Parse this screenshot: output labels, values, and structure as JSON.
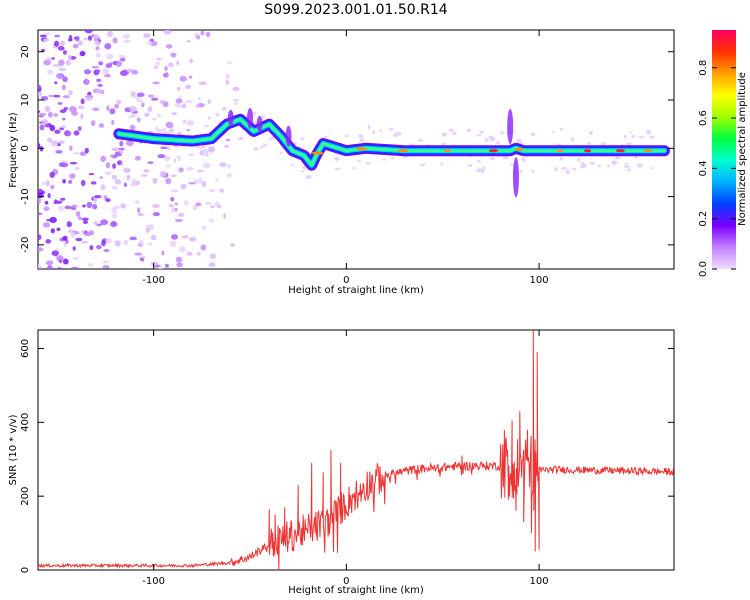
{
  "figure": {
    "title": "S099.2023.001.01.50.R14"
  },
  "chart_data": [
    {
      "type": "heatmap",
      "xlabel": "Height of straight line (km)",
      "ylabel": "Frequency (Hz)",
      "xlim": [
        -160,
        170
      ],
      "ylim": [
        -25,
        24.5
      ],
      "x_ticks": [
        -100,
        0,
        100
      ],
      "y_ticks": [
        -20,
        -10,
        0,
        10,
        20
      ],
      "x_tick_labels": [
        "-100",
        "0",
        "100"
      ],
      "y_tick_labels": [
        "-20",
        "-10",
        "0",
        "10",
        "20"
      ],
      "colorbar": {
        "label": "Normalized spectral amplitude",
        "range": [
          0,
          0.95
        ],
        "ticks": [
          0,
          0.2,
          0.4,
          0.6,
          0.8
        ],
        "tick_labels": [
          "0.0",
          "0.2",
          "0.4",
          "0.6",
          "0.8"
        ],
        "colors": [
          "#f2dcff",
          "#c080ff",
          "#7a00ff",
          "#0040ff",
          "#00b0ff",
          "#00ffd0",
          "#00ff40",
          "#a0ff00",
          "#ffff00",
          "#ffa000",
          "#ff3000",
          "#ff0060"
        ]
      },
      "ridge": {
        "x": [
          -118,
          -100,
          -80,
          -70,
          -62,
          -55,
          -48,
          -40,
          -34,
          -28,
          -22,
          -18,
          -15,
          -12,
          -8,
          0,
          10,
          30,
          60,
          80,
          85,
          88,
          92,
          100,
          130,
          165
        ],
        "y": [
          3,
          2,
          1.5,
          2,
          5,
          6,
          3.5,
          5,
          2.5,
          -0.5,
          -1.5,
          -3.5,
          -1,
          1,
          0.5,
          -0.5,
          0,
          -0.5,
          -0.5,
          -0.5,
          -0.5,
          0,
          -0.5,
          -0.5,
          -0.5,
          -0.5
        ]
      },
      "noise_region_x": [
        -160,
        -65
      ]
    },
    {
      "type": "line",
      "xlabel": "Height of straight line (km)",
      "ylabel": "SNR (10 * v/v)",
      "xlim": [
        -160,
        170
      ],
      "ylim": [
        0,
        650
      ],
      "x_ticks": [
        -100,
        0,
        100
      ],
      "y_ticks": [
        0,
        200,
        400,
        600
      ],
      "x_tick_labels": [
        "-100",
        "0",
        "100"
      ],
      "y_tick_labels": [
        "0",
        "200",
        "400",
        "600"
      ],
      "color": "#ee3333",
      "series": [
        {
          "trend_x": [
            -160,
            -120,
            -80,
            -60,
            -50,
            -40,
            -30,
            -20,
            -10,
            0,
            10,
            20,
            30,
            40,
            50,
            60,
            70,
            80,
            85,
            90,
            95,
            100,
            110,
            130,
            150,
            170
          ],
          "trend_y": [
            12,
            12,
            12,
            20,
            35,
            70,
            90,
            110,
            130,
            180,
            230,
            255,
            268,
            275,
            278,
            282,
            282,
            282,
            282,
            282,
            282,
            270,
            272,
            270,
            268,
            266
          ],
          "spikes_x": [
            -40,
            -37,
            -32,
            -25,
            -18,
            -12,
            -8,
            -3,
            60,
            82,
            84,
            86,
            88,
            90,
            92,
            94,
            96,
            97,
            98,
            99,
            100
          ],
          "spikes_y": [
            165,
            150,
            170,
            230,
            290,
            265,
            325,
            290,
            310,
            380,
            190,
            405,
            160,
            430,
            130,
            380,
            100,
            650,
            50,
            590,
            55
          ]
        }
      ]
    }
  ]
}
